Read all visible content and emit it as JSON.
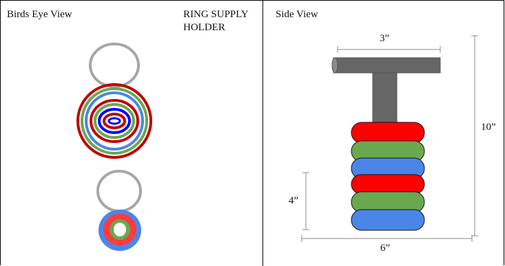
{
  "panels": {
    "left_title": "Birds Eye View",
    "left_subtitle": "RING SUPPLY HOLDER",
    "right_title": "Side View"
  },
  "dimensions": {
    "top_width": "3”",
    "total_height": "10”",
    "lower_height": "4”",
    "base_width": "6”"
  },
  "colors": {
    "red": "#ff0000",
    "green": "#6aa84f",
    "blue": "#4a86e8",
    "post": "#666666",
    "outline_gray": "#a6a6a6",
    "deep_blue": "#0000ff",
    "dark_red": "#c00000"
  }
}
